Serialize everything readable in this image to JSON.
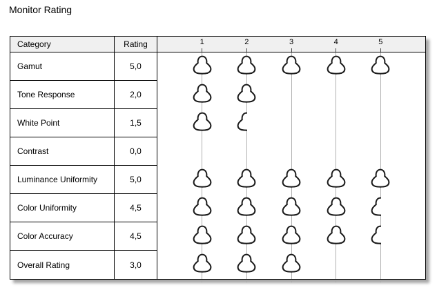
{
  "title": "Monitor Rating",
  "colors": {
    "header_bg": "#f0f0f0",
    "border_color": "#000000",
    "gridline": "#b0b0b0",
    "icon_stroke": "#1a1a1a"
  },
  "table": {
    "headers": {
      "category": "Category",
      "rating": "Rating"
    },
    "scale_labels": [
      "1",
      "2",
      "3",
      "4",
      "5"
    ],
    "rows": [
      {
        "category": "Gamut",
        "rating_display": "5,0",
        "rating_value": 5.0
      },
      {
        "category": "Tone Response",
        "rating_display": "2,0",
        "rating_value": 2.0
      },
      {
        "category": "White Point",
        "rating_display": "1,5",
        "rating_value": 1.5
      },
      {
        "category": "Contrast",
        "rating_display": "0,0",
        "rating_value": 0.0
      },
      {
        "category": "Luminance Uniformity",
        "rating_display": "5,0",
        "rating_value": 5.0
      },
      {
        "category": "Color Uniformity",
        "rating_display": "4,5",
        "rating_value": 4.5
      },
      {
        "category": "Color Accuracy",
        "rating_display": "4,5",
        "rating_value": 4.5
      },
      {
        "category": "Overall Rating",
        "rating_display": "3,0",
        "rating_value": 3.0
      }
    ]
  },
  "chart_data": {
    "type": "bar",
    "subtype": "pictogram-rating",
    "title": "Monitor Rating",
    "column_headers": [
      "Category",
      "Rating"
    ],
    "categories": [
      "Gamut",
      "Tone Response",
      "White Point",
      "Contrast",
      "Luminance Uniformity",
      "Color Uniformity",
      "Color Accuracy",
      "Overall Rating"
    ],
    "values": [
      5.0,
      2.0,
      1.5,
      0.0,
      5.0,
      4.5,
      4.5,
      3.0
    ],
    "value_labels": [
      "5,0",
      "2,0",
      "1,5",
      "0,0",
      "5,0",
      "4,5",
      "4,5",
      "3,0"
    ],
    "xlabel": "",
    "ylabel": "",
    "scale_ticks": [
      1,
      2,
      3,
      4,
      5
    ],
    "xlim": [
      0,
      6
    ],
    "grid": "vertical-only",
    "legend": "none",
    "marker": "blob-icon",
    "half_marker": "left-half-blob-icon"
  }
}
